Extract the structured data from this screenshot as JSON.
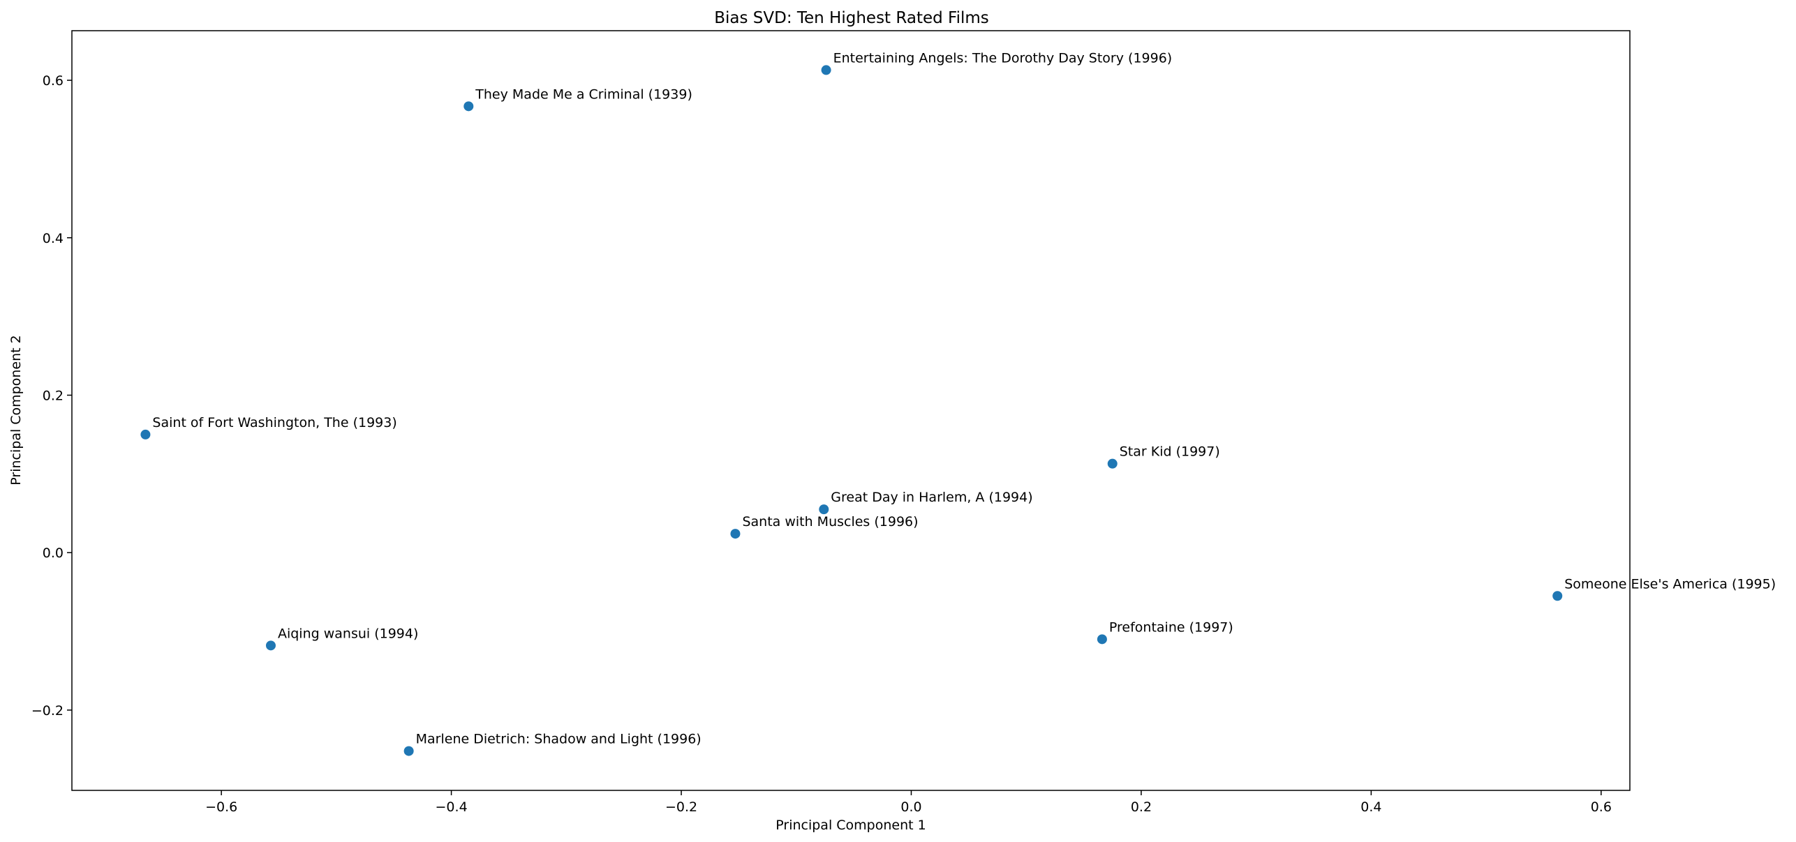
{
  "chart_data": {
    "type": "scatter",
    "title": "Bias SVD: Ten Highest Rated Films",
    "xlabel": "Principal Component 1",
    "ylabel": "Principal Component 2",
    "xlim": [
      -0.73,
      0.625
    ],
    "ylim": [
      -0.302,
      0.663
    ],
    "xticks": [
      -0.6,
      -0.4,
      -0.2,
      0.0,
      0.2,
      0.4,
      0.6
    ],
    "xtick_labels": [
      "−0.6",
      "−0.4",
      "−0.2",
      "0.0",
      "0.2",
      "0.4",
      "0.6"
    ],
    "yticks": [
      -0.2,
      0.0,
      0.2,
      0.4,
      0.6
    ],
    "ytick_labels": [
      "−0.2",
      "0.0",
      "0.2",
      "0.4",
      "0.6"
    ],
    "grid": false,
    "marker_color": "#1f77b4",
    "points": [
      {
        "label": "Entertaining Angels: The Dorothy Day Story (1996)",
        "x": -0.074,
        "y": 0.613
      },
      {
        "label": "They Made Me a Criminal (1939)",
        "x": -0.385,
        "y": 0.567
      },
      {
        "label": "Saint of Fort Washington, The (1993)",
        "x": -0.666,
        "y": 0.15
      },
      {
        "label": "Star Kid (1997)",
        "x": 0.175,
        "y": 0.113
      },
      {
        "label": "Great Day in Harlem, A (1994)",
        "x": -0.076,
        "y": 0.055
      },
      {
        "label": "Santa with Muscles (1996)",
        "x": -0.153,
        "y": 0.024
      },
      {
        "label": "Someone Else's America (1995)",
        "x": 0.562,
        "y": -0.055
      },
      {
        "label": "Prefontaine (1997)",
        "x": 0.166,
        "y": -0.11
      },
      {
        "label": "Aiqing wansui (1994)",
        "x": -0.557,
        "y": -0.118
      },
      {
        "label": "Marlene Dietrich: Shadow and Light (1996)",
        "x": -0.437,
        "y": -0.252
      }
    ]
  }
}
